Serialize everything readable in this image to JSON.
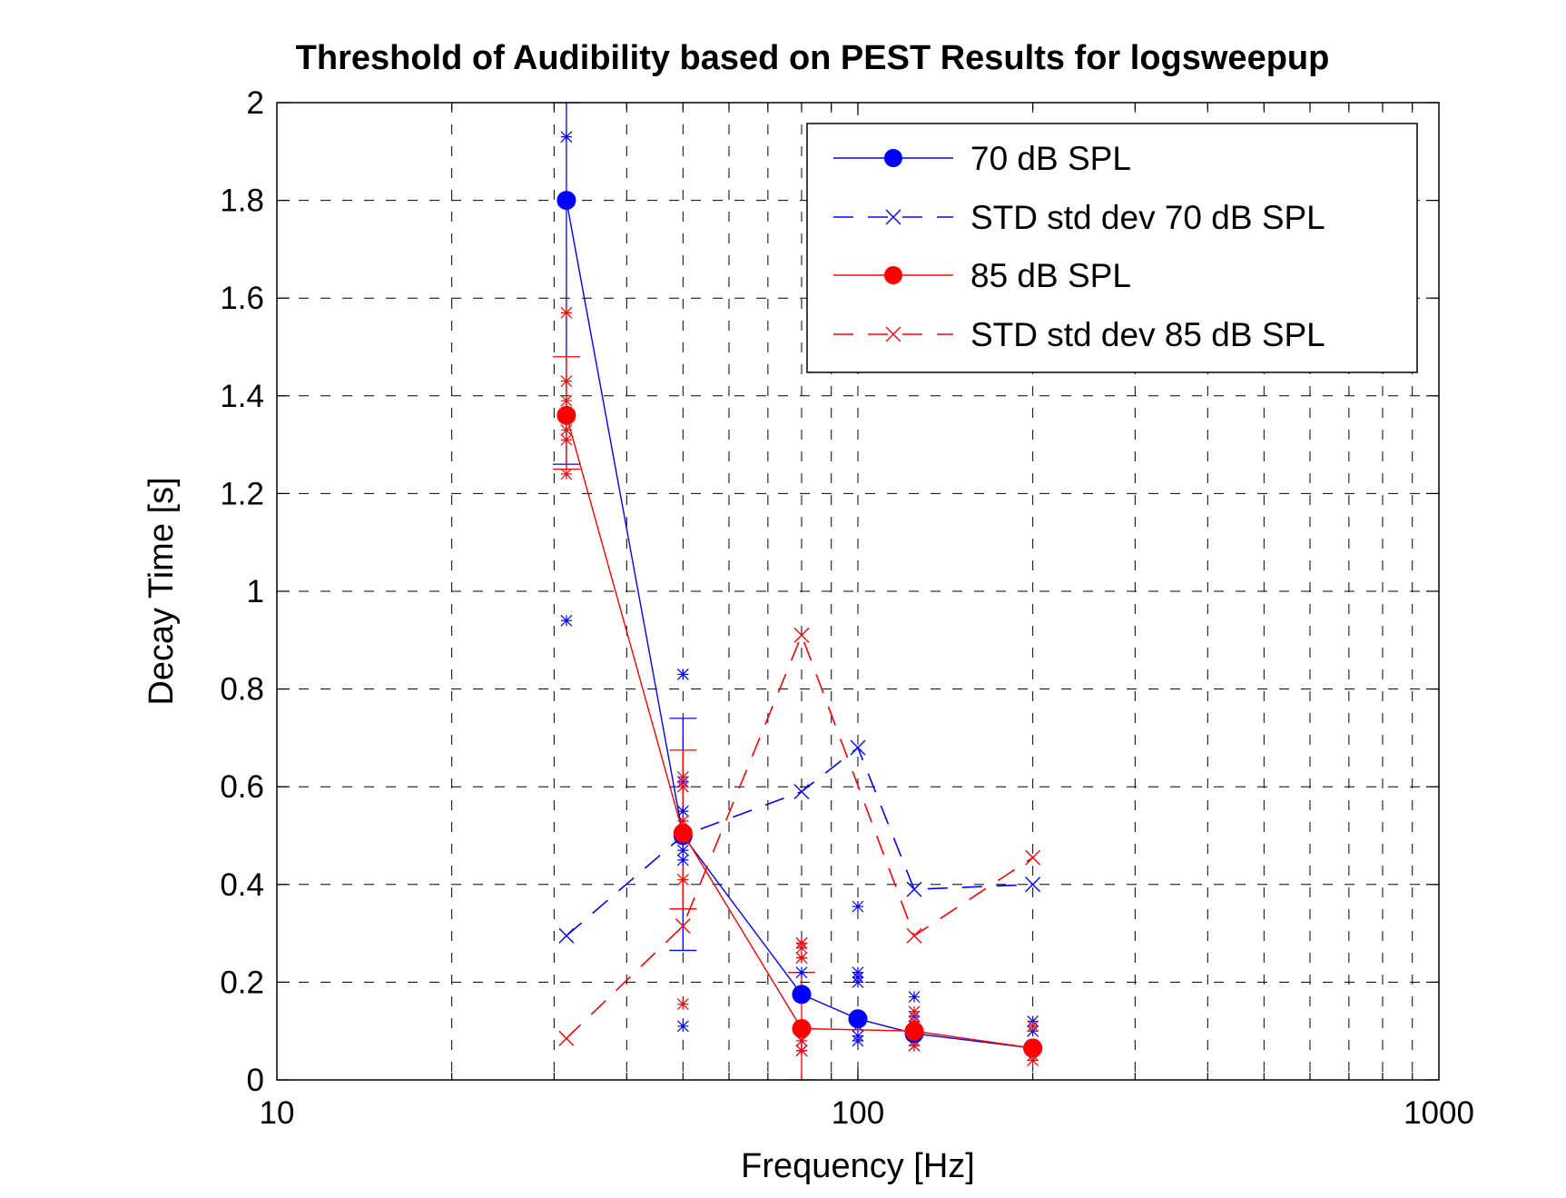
{
  "chart_data": {
    "type": "line",
    "title": "Threshold of Audibility based on PEST Results for logsweepup",
    "xlabel": "Frequency [Hz]",
    "ylabel": "Decay Time [s]",
    "xscale": "log",
    "xlim": [
      10,
      1000
    ],
    "ylim": [
      0,
      2
    ],
    "xticks": [
      10,
      100,
      1000
    ],
    "xtick_labels": [
      "10",
      "100",
      "1000"
    ],
    "yticks": [
      0,
      0.2,
      0.4,
      0.6,
      0.8,
      1,
      1.2,
      1.4,
      1.6,
      1.8,
      2
    ],
    "ytick_labels": [
      "0",
      "0.2",
      "0.4",
      "0.6",
      "0.8",
      "1",
      "1.2",
      "1.4",
      "1.6",
      "1.8",
      "2"
    ],
    "grid": true,
    "legend_position": "top-right",
    "x": [
      31.5,
      50,
      80,
      100,
      125,
      200
    ],
    "series": [
      {
        "name": "70 dB SPL",
        "color": "#0000ff",
        "style": "solid",
        "marker": "filled-circle",
        "values": [
          1.8,
          0.5,
          0.175,
          0.125,
          0.095,
          0.065
        ]
      },
      {
        "name": "STD std dev 70 dB SPL",
        "color": "#0000ff",
        "style": "dashed",
        "marker": "x",
        "values": [
          0.295,
          0.5,
          0.59,
          0.68,
          0.39,
          0.4
        ]
      },
      {
        "name": "85 dB SPL",
        "color": "#ff0000",
        "style": "solid",
        "marker": "filled-circle",
        "values": [
          1.36,
          0.505,
          0.105,
          null,
          0.1,
          0.065
        ]
      },
      {
        "name": "STD std dev 85 dB SPL",
        "color": "#ff0000",
        "style": "dashed",
        "marker": "x",
        "values": [
          0.085,
          0.315,
          0.91,
          null,
          0.295,
          0.455
        ]
      }
    ],
    "individual_points": [
      {
        "series": "70 dB SPL",
        "x": 31.5,
        "values": [
          1.93,
          0.94
        ]
      },
      {
        "series": "70 dB SPL",
        "x": 50,
        "values": [
          0.83,
          0.61,
          0.55,
          0.47,
          0.45,
          0.11
        ]
      },
      {
        "series": "70 dB SPL",
        "x": 80,
        "values": [
          0.28,
          0.25,
          0.22,
          0.11,
          0.08,
          0.06
        ]
      },
      {
        "series": "70 dB SPL",
        "x": 100,
        "values": [
          0.355,
          0.22,
          0.21,
          0.2,
          0.11,
          0.09,
          0.08
        ]
      },
      {
        "series": "70 dB SPL",
        "x": 125,
        "values": [
          0.17,
          0.13,
          0.11,
          0.09,
          0.07
        ]
      },
      {
        "series": "70 dB SPL",
        "x": 200,
        "values": [
          0.12,
          0.1,
          0.06
        ]
      },
      {
        "series": "85 dB SPL",
        "x": 31.5,
        "values": [
          1.57,
          1.43,
          1.39,
          1.33,
          1.31,
          1.24
        ]
      },
      {
        "series": "85 dB SPL",
        "x": 50,
        "values": [
          0.62,
          0.6,
          0.53,
          0.41,
          0.155
        ]
      },
      {
        "series": "85 dB SPL",
        "x": 80,
        "values": [
          0.28,
          0.27,
          0.25,
          0.1,
          0.08,
          0.06
        ]
      },
      {
        "series": "85 dB SPL",
        "x": 125,
        "values": [
          0.14,
          0.12,
          0.1,
          0.08,
          0.07
        ]
      },
      {
        "series": "85 dB SPL",
        "x": 200,
        "values": [
          0.11,
          0.07,
          0.05,
          0.04
        ]
      }
    ],
    "error_bars": [
      {
        "series": "70 dB SPL",
        "x": 31.5,
        "low": 1.26,
        "high": 2.0
      },
      {
        "series": "70 dB SPL",
        "x": 50,
        "low": 0.265,
        "high": 0.74
      },
      {
        "series": "85 dB SPL",
        "x": 31.5,
        "low": 1.25,
        "high": 1.48
      },
      {
        "series": "85 dB SPL",
        "x": 50,
        "low": 0.35,
        "high": 0.675
      },
      {
        "series": "85 dB SPL",
        "x": 80,
        "low": 0.0,
        "high": 0.22
      }
    ]
  }
}
